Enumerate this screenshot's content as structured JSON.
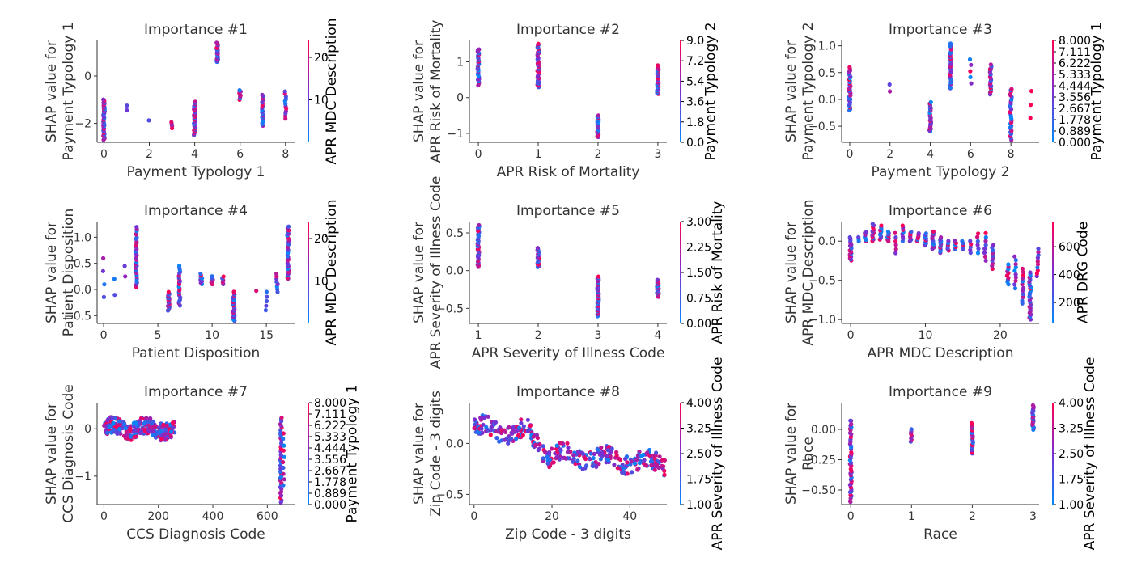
{
  "colors": {
    "low": "#008afb",
    "mid": "#7c2dd1",
    "high": "#ff0052"
  },
  "chart_data": [
    {
      "type": "scatter",
      "title": "Importance #1",
      "xlabel": "Payment Typology 1",
      "ylabel": [
        "SHAP value for",
        "Payment Typology 1"
      ],
      "xlim": [
        -0.3,
        8.4
      ],
      "ylim": [
        -2.8,
        1.5
      ],
      "xticks": [
        "0",
        "2",
        "4",
        "6",
        "8"
      ],
      "xtick_values": [
        0,
        2,
        4,
        6,
        8
      ],
      "yticks": [
        "−2",
        "0"
      ],
      "ytick_values": [
        -2,
        0
      ],
      "colorbar": {
        "label": "APR MDC Description",
        "ticks": [
          "10",
          "20"
        ],
        "tick_values": [
          10,
          20
        ],
        "range": [
          0,
          24
        ]
      },
      "clusters": [
        {
          "x": 0,
          "lo": -2.7,
          "hi": -1.0,
          "n": 45
        },
        {
          "x": 1,
          "lo": -1.45,
          "hi": -1.25,
          "n": 2
        },
        {
          "x": 2,
          "lo": -1.9,
          "hi": -1.85,
          "n": 1
        },
        {
          "x": 3,
          "lo": -2.2,
          "hi": -1.95,
          "n": 4
        },
        {
          "x": 4,
          "lo": -2.5,
          "hi": -1.1,
          "n": 35
        },
        {
          "x": 5,
          "lo": 0.6,
          "hi": 1.4,
          "n": 25
        },
        {
          "x": 6,
          "lo": -1.0,
          "hi": -0.6,
          "n": 8
        },
        {
          "x": 7,
          "lo": -2.1,
          "hi": -0.8,
          "n": 22
        },
        {
          "x": 8,
          "lo": -1.8,
          "hi": -0.65,
          "n": 12
        }
      ]
    },
    {
      "type": "scatter",
      "title": "Importance #2",
      "xlabel": "APR Risk of Mortality",
      "ylabel": [
        "SHAP value for",
        "APR Risk of Mortality"
      ],
      "xlim": [
        -0.15,
        3.15
      ],
      "ylim": [
        -1.25,
        1.6
      ],
      "xticks": [
        "0",
        "1",
        "2",
        "3"
      ],
      "xtick_values": [
        0,
        1,
        2,
        3
      ],
      "yticks": [
        "−1",
        "0",
        "1"
      ],
      "ytick_values": [
        -1,
        0,
        1
      ],
      "colorbar": {
        "label": "Payment Typology 2",
        "ticks": [
          "0.0",
          "1.8",
          "3.6",
          "5.4",
          "7.2",
          "9.0"
        ],
        "tick_values": [
          0,
          1.8,
          3.6,
          5.4,
          7.2,
          9.0
        ],
        "range": [
          0,
          9
        ]
      },
      "clusters": [
        {
          "x": 0,
          "lo": 0.35,
          "hi": 1.35,
          "n": 28
        },
        {
          "x": 1,
          "lo": 0.3,
          "hi": 1.5,
          "n": 45
        },
        {
          "x": 2,
          "lo": -1.1,
          "hi": -0.5,
          "n": 30
        },
        {
          "x": 3,
          "lo": 0.1,
          "hi": 0.9,
          "n": 30
        }
      ]
    },
    {
      "type": "scatter",
      "title": "Importance #3",
      "xlabel": "Payment Typology 2",
      "ylabel": [
        "SHAP value for",
        "Payment Typology 2"
      ],
      "xlim": [
        -0.4,
        9.4
      ],
      "ylim": [
        -0.8,
        1.1
      ],
      "xticks": [
        "0",
        "2",
        "4",
        "6",
        "8"
      ],
      "xtick_values": [
        0,
        2,
        4,
        6,
        8
      ],
      "yticks": [
        "−0.5",
        "0.0",
        "0.5",
        "1.0"
      ],
      "ytick_values": [
        -0.5,
        0,
        0.5,
        1.0
      ],
      "colorbar": {
        "label": "Payment Typology 1",
        "ticks": [
          "0.000",
          "0.889",
          "1.778",
          "2.667",
          "3.556",
          "4.444",
          "5.333",
          "6.222",
          "7.111",
          "8.000"
        ],
        "tick_values": [
          0,
          0.889,
          1.778,
          2.667,
          3.556,
          4.444,
          5.333,
          6.222,
          7.111,
          8.0
        ],
        "range": [
          0,
          8
        ]
      },
      "clusters": [
        {
          "x": 0,
          "lo": -0.2,
          "hi": 0.6,
          "n": 35
        },
        {
          "x": 2,
          "lo": 0.15,
          "hi": 0.28,
          "n": 2
        },
        {
          "x": 4,
          "lo": -0.6,
          "hi": -0.05,
          "n": 25
        },
        {
          "x": 5,
          "lo": 0.2,
          "hi": 1.05,
          "n": 30
        },
        {
          "x": 6,
          "lo": 0.3,
          "hi": 0.75,
          "n": 5
        },
        {
          "x": 7,
          "lo": 0.1,
          "hi": 0.65,
          "n": 20
        },
        {
          "x": 8,
          "lo": -0.75,
          "hi": 0.2,
          "n": 30
        },
        {
          "x": 9,
          "lo": -0.35,
          "hi": 0.15,
          "n": 3
        }
      ]
    },
    {
      "type": "scatter",
      "title": "Importance #4",
      "xlabel": "Patient Disposition",
      "ylabel": [
        "SHAP value for",
        "Patient Disposition"
      ],
      "xlim": [
        -0.6,
        17.6
      ],
      "ylim": [
        -0.65,
        1.3
      ],
      "xticks": [
        "0",
        "5",
        "10",
        "15"
      ],
      "xtick_values": [
        0,
        5,
        10,
        15
      ],
      "yticks": [
        "−0.5",
        "0.0",
        "0.5",
        "1.0"
      ],
      "ytick_values": [
        -0.5,
        0,
        0.5,
        1.0
      ],
      "colorbar": {
        "label": "APR MDC Description",
        "ticks": [
          "10",
          "20"
        ],
        "tick_values": [
          10,
          20
        ],
        "range": [
          0,
          24
        ]
      },
      "clusters": [
        {
          "x": 0,
          "lo": -0.15,
          "hi": 0.6,
          "n": 4
        },
        {
          "x": 1,
          "lo": -0.1,
          "hi": 0.2,
          "n": 2
        },
        {
          "x": 2,
          "lo": 0.25,
          "hi": 0.45,
          "n": 2
        },
        {
          "x": 3,
          "lo": 0.05,
          "hi": 1.2,
          "n": 30
        },
        {
          "x": 6,
          "lo": -0.4,
          "hi": -0.05,
          "n": 22
        },
        {
          "x": 7,
          "lo": -0.3,
          "hi": 0.45,
          "n": 22
        },
        {
          "x": 9,
          "lo": 0.1,
          "hi": 0.3,
          "n": 8
        },
        {
          "x": 10,
          "lo": 0.1,
          "hi": 0.25,
          "n": 6
        },
        {
          "x": 11,
          "lo": 0.1,
          "hi": 0.25,
          "n": 5
        },
        {
          "x": 12,
          "lo": -0.6,
          "hi": -0.05,
          "n": 25
        },
        {
          "x": 14,
          "lo": -0.05,
          "hi": 0.0,
          "n": 1
        },
        {
          "x": 15,
          "lo": -0.4,
          "hi": -0.05,
          "n": 5
        },
        {
          "x": 16,
          "lo": -0.05,
          "hi": 0.3,
          "n": 8
        },
        {
          "x": 17,
          "lo": 0.2,
          "hi": 1.2,
          "n": 30
        }
      ]
    },
    {
      "type": "scatter",
      "title": "Importance #5",
      "xlabel": "APR Severity of Illness Code",
      "ylabel": [
        "SHAP value for",
        "APR Severity of Illness Code"
      ],
      "xlim": [
        0.85,
        4.15
      ],
      "ylim": [
        -0.7,
        0.65
      ],
      "xticks": [
        "1",
        "2",
        "3",
        "4"
      ],
      "xtick_values": [
        1,
        2,
        3,
        4
      ],
      "yticks": [
        "−0.5",
        "0.0",
        "0.5"
      ],
      "ytick_values": [
        -0.5,
        0,
        0.5
      ],
      "colorbar": {
        "label": "APR Risk of Mortality",
        "ticks": [
          "0.00",
          "0.75",
          "1.50",
          "2.25",
          "3.00"
        ],
        "tick_values": [
          0,
          0.75,
          1.5,
          2.25,
          3.0
        ],
        "range": [
          0,
          3
        ]
      },
      "clusters": [
        {
          "x": 1,
          "lo": 0.05,
          "hi": 0.6,
          "n": 35
        },
        {
          "x": 2,
          "lo": 0.05,
          "hi": 0.3,
          "n": 25
        },
        {
          "x": 3,
          "lo": -0.6,
          "hi": -0.08,
          "n": 35
        },
        {
          "x": 4,
          "lo": -0.35,
          "hi": -0.12,
          "n": 25
        }
      ]
    },
    {
      "type": "scatter",
      "title": "Importance #6",
      "xlabel": "APR MDC Description",
      "ylabel": [
        "SHAP value for",
        "APR MDC Description"
      ],
      "xlim": [
        -1.2,
        25.2
      ],
      "ylim": [
        -1.05,
        0.25
      ],
      "xticks": [
        "0",
        "10",
        "20"
      ],
      "xtick_values": [
        0,
        10,
        20
      ],
      "yticks": [
        "−1.0",
        "−0.5",
        "0.0"
      ],
      "ytick_values": [
        -1.0,
        -0.5,
        0.0
      ],
      "colorbar": {
        "label": "APR DRG Code",
        "ticks": [
          "200",
          "400",
          "600"
        ],
        "tick_values": [
          200,
          400,
          600
        ],
        "range": [
          50,
          780
        ]
      },
      "points_y": [
        0.0,
        0.05,
        0.1,
        0.15,
        0.12,
        0.1,
        0.05,
        0.0,
        0.08,
        0.05,
        0.03,
        0.02,
        0.0,
        -0.02,
        -0.03,
        -0.05,
        -0.02,
        -0.05,
        -0.1,
        -0.15,
        -0.3,
        -0.45,
        -0.55,
        -0.7,
        -0.8
      ],
      "clusters": [
        {
          "x": 0,
          "lo": -0.25,
          "hi": 0.05,
          "n": 20
        },
        {
          "x": 1,
          "lo": 0.0,
          "hi": 0.05,
          "n": 3
        },
        {
          "x": 2,
          "lo": 0.0,
          "hi": 0.12,
          "n": 8
        },
        {
          "x": 3,
          "lo": 0.0,
          "hi": 0.22,
          "n": 12
        },
        {
          "x": 4,
          "lo": 0.02,
          "hi": 0.2,
          "n": 10
        },
        {
          "x": 5,
          "lo": 0.0,
          "hi": 0.12,
          "n": 8
        },
        {
          "x": 6,
          "lo": -0.15,
          "hi": 0.1,
          "n": 6
        },
        {
          "x": 7,
          "lo": 0.0,
          "hi": 0.2,
          "n": 8
        },
        {
          "x": 8,
          "lo": 0.0,
          "hi": 0.12,
          "n": 8
        },
        {
          "x": 9,
          "lo": 0.0,
          "hi": 0.1,
          "n": 6
        },
        {
          "x": 10,
          "lo": -0.05,
          "hi": 0.1,
          "n": 10
        },
        {
          "x": 11,
          "lo": -0.1,
          "hi": 0.12,
          "n": 12
        },
        {
          "x": 12,
          "lo": -0.15,
          "hi": 0.05,
          "n": 12
        },
        {
          "x": 13,
          "lo": -0.12,
          "hi": 0.0,
          "n": 6
        },
        {
          "x": 14,
          "lo": -0.1,
          "hi": 0.0,
          "n": 5
        },
        {
          "x": 15,
          "lo": -0.1,
          "hi": 0.0,
          "n": 5
        },
        {
          "x": 16,
          "lo": -0.15,
          "hi": 0.0,
          "n": 5
        },
        {
          "x": 17,
          "lo": -0.15,
          "hi": 0.1,
          "n": 6
        },
        {
          "x": 18,
          "lo": -0.25,
          "hi": 0.1,
          "n": 8
        },
        {
          "x": 19,
          "lo": -0.35,
          "hi": -0.05,
          "n": 10
        },
        {
          "x": 21,
          "lo": -0.55,
          "hi": -0.3,
          "n": 10
        },
        {
          "x": 22,
          "lo": -0.6,
          "hi": -0.2,
          "n": 10
        },
        {
          "x": 23,
          "lo": -0.8,
          "hi": -0.35,
          "n": 12
        },
        {
          "x": 24,
          "lo": -1.0,
          "hi": -0.4,
          "n": 30
        },
        {
          "x": 25,
          "lo": -0.45,
          "hi": -0.1,
          "n": 10
        }
      ]
    },
    {
      "type": "scatter",
      "title": "Importance #7",
      "xlabel": "CCS Diagnosis Code",
      "ylabel": [
        "SHAP value for",
        "CCS Diagnosis Code"
      ],
      "xlim": [
        -25,
        700
      ],
      "ylim": [
        -1.6,
        0.55
      ],
      "xticks": [
        "0",
        "200",
        "400",
        "600"
      ],
      "xtick_values": [
        0,
        200,
        400,
        600
      ],
      "yticks": [
        "−1",
        "0"
      ],
      "ytick_values": [
        -1,
        0
      ],
      "colorbar": {
        "label": "Payment Typology 1",
        "ticks": [
          "0.000",
          "0.889",
          "1.778",
          "2.667",
          "3.556",
          "4.444",
          "5.333",
          "6.222",
          "7.111",
          "8.000"
        ],
        "tick_values": [
          0,
          0.889,
          1.778,
          2.667,
          3.556,
          4.444,
          5.333,
          6.222,
          7.111,
          8.0
        ],
        "range": [
          0,
          8
        ]
      },
      "band": {
        "x_from": 0,
        "x_to": 260,
        "lo": -0.3,
        "hi": 0.3,
        "n": 260,
        "wave_amp": 0.08
      },
      "clusters": [
        {
          "x": 650,
          "lo": -1.55,
          "hi": 0.25,
          "n": 40
        },
        {
          "x": 660,
          "lo": -1.2,
          "hi": -0.1,
          "n": 10
        }
      ]
    },
    {
      "type": "scatter",
      "title": "Importance #8",
      "xlabel": "Zip Code - 3 digits",
      "ylabel": [
        "SHAP value for",
        "Zip Code - 3 digits"
      ],
      "xlim": [
        -1.2,
        49.5
      ],
      "ylim": [
        -0.6,
        0.4
      ],
      "xticks": [
        "0",
        "20",
        "40"
      ],
      "xtick_values": [
        0,
        20,
        40
      ],
      "yticks": [
        "−0.5",
        "0.0"
      ],
      "ytick_values": [
        -0.5,
        0.0
      ],
      "colorbar": {
        "label": "APR Severity of Illness Code",
        "ticks": [
          "1.00",
          "1.75",
          "2.50",
          "3.25",
          "4.00"
        ],
        "tick_values": [
          1,
          1.75,
          2.5,
          3.25,
          4.0
        ],
        "range": [
          1,
          4
        ]
      },
      "band": {
        "x_from": 0,
        "x_to": 49,
        "lo": -0.15,
        "hi": 0.15,
        "n": 330,
        "trend": [
          [
            0,
            0.15
          ],
          [
            14,
            0.1
          ],
          [
            19,
            -0.1
          ],
          [
            49,
            -0.2
          ]
        ]
      },
      "clusters": []
    },
    {
      "type": "scatter",
      "title": "Importance #9",
      "xlabel": "Race",
      "ylabel": [
        "SHAP value for",
        "Race"
      ],
      "xlim": [
        -0.15,
        3.1
      ],
      "ylim": [
        -0.62,
        0.22
      ],
      "xticks": [
        "0",
        "1",
        "2",
        "3"
      ],
      "xtick_values": [
        0,
        1,
        2,
        3
      ],
      "yticks": [
        "−0.50",
        "−0.25",
        "0.00"
      ],
      "ytick_values": [
        -0.5,
        -0.25,
        0.0
      ],
      "colorbar": {
        "label": "APR Severity of Illness Code",
        "ticks": [
          "1.00",
          "1.75",
          "2.50",
          "3.25",
          "4.00"
        ],
        "tick_values": [
          1,
          1.75,
          2.5,
          3.25,
          4.0
        ],
        "range": [
          1,
          4
        ]
      },
      "clusters": [
        {
          "x": 0,
          "lo": -0.6,
          "hi": 0.08,
          "n": 45
        },
        {
          "x": 1,
          "lo": -0.1,
          "hi": 0.0,
          "n": 8
        },
        {
          "x": 2,
          "lo": -0.2,
          "hi": 0.05,
          "n": 20
        },
        {
          "x": 3,
          "lo": 0.0,
          "hi": 0.2,
          "n": 25
        }
      ]
    }
  ]
}
